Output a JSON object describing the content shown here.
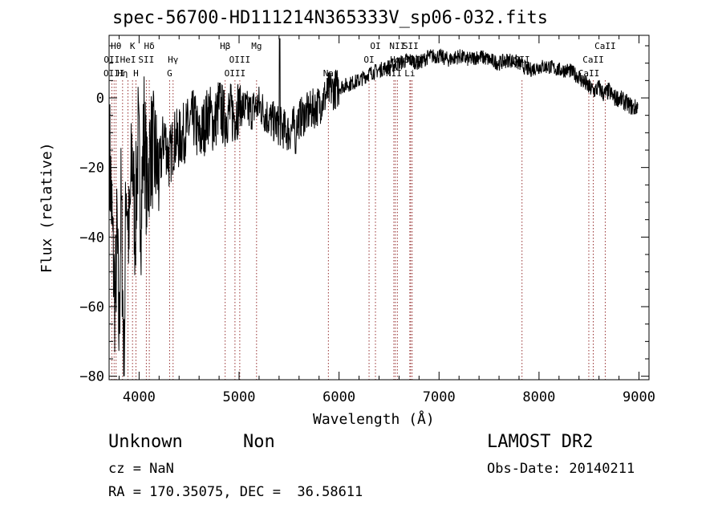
{
  "chart_data": {
    "type": "line",
    "title": "spec-56700-HD111214N365333V_sp06-032.fits",
    "xlabel": "Wavelength (Å)",
    "ylabel": "Flux (relative)",
    "xlim": [
      3700,
      9100
    ],
    "ylim": [
      -81,
      18
    ],
    "xticks": [
      4000,
      5000,
      6000,
      7000,
      8000,
      9000
    ],
    "yticks": [
      -80,
      -60,
      -40,
      -20,
      0
    ],
    "grid": false,
    "line_color": "#000000",
    "marker_color": "#8b1a1a",
    "series": [
      {
        "x": [
          3700,
          3740,
          3760,
          3780,
          3800,
          3820,
          3850,
          3870,
          3900,
          3930,
          3960,
          3990,
          4020,
          4050,
          4080,
          4110,
          4150,
          4200,
          4250,
          4300,
          4350,
          4400,
          4450,
          4500,
          4550,
          4600,
          4650,
          4700,
          4750,
          4800,
          4850,
          4900,
          4950,
          5000,
          5100,
          5200,
          5300,
          5400,
          5500,
          5600,
          5700,
          5800,
          5900,
          6000,
          6100,
          6200,
          6300,
          6400,
          6500,
          6600,
          6700,
          6800,
          6900,
          7000,
          7100,
          7200,
          7300,
          7400,
          7500,
          7600,
          7700,
          7800,
          7900,
          8000,
          8100,
          8200,
          8300,
          8400,
          8500,
          8550,
          8600,
          8650,
          8700,
          8750,
          8800,
          8850,
          8900,
          8950,
          9000
        ],
        "y": [
          -10,
          -45,
          -60,
          -38,
          -70,
          -28,
          -80,
          -22,
          -42,
          -15,
          -38,
          -12,
          -33,
          -8,
          -28,
          -14,
          -16,
          -22,
          -10,
          -18,
          -12,
          -12,
          -10,
          -8,
          -6,
          -12,
          -8,
          -4,
          -8,
          -2,
          -6,
          -4,
          -5,
          -2,
          -4,
          -2,
          -6,
          -8,
          -10,
          -6,
          -4,
          -2,
          2,
          3,
          4,
          5,
          7,
          8,
          9,
          10,
          11,
          10,
          12,
          12,
          11,
          12,
          11,
          12,
          11,
          10,
          11,
          10,
          8,
          9,
          9,
          8,
          8,
          6,
          3,
          2,
          3,
          1,
          2,
          0,
          0,
          -1,
          -2,
          -3,
          -2
        ]
      }
    ],
    "lines": [
      {
        "x": 3727,
        "label": "OII",
        "row": 2
      },
      {
        "x": 3750,
        "label": "OIII",
        "row": 3
      },
      {
        "x": 3770,
        "label": "Hθ",
        "row": 1
      },
      {
        "x": 3835,
        "label": "Hη",
        "row": 3
      },
      {
        "x": 3889,
        "label": "HeI",
        "row": 2
      },
      {
        "x": 3934,
        "label": "K",
        "row": 1
      },
      {
        "x": 3968,
        "label": "H",
        "row": 3
      },
      {
        "x": 4072,
        "label": "SII",
        "row": 2
      },
      {
        "x": 4102,
        "label": "Hδ",
        "row": 1
      },
      {
        "x": 4305,
        "label": "G",
        "row": 3
      },
      {
        "x": 4340,
        "label": "Hγ",
        "row": 2
      },
      {
        "x": 4861,
        "label": "Hβ",
        "row": 1
      },
      {
        "x": 4959,
        "label": "OIII",
        "row": 3
      },
      {
        "x": 5007,
        "label": "OIII",
        "row": 2
      },
      {
        "x": 5175,
        "label": "Mg",
        "row": 1
      },
      {
        "x": 5893,
        "label": "Na",
        "row": 3
      },
      {
        "x": 6300,
        "label": "OI",
        "row": 2
      },
      {
        "x": 6364,
        "label": "OI",
        "row": 1
      },
      {
        "x": 6548,
        "label": "NII",
        "row": 3
      },
      {
        "x": 6563,
        "label": "Hα",
        "row": 2
      },
      {
        "x": 6583,
        "label": "NII",
        "row": 1
      },
      {
        "x": 6708,
        "label": "Li",
        "row": 3
      },
      {
        "x": 6716,
        "label": "SII",
        "row": 1
      },
      {
        "x": 6731,
        "label": "SII",
        "row": 2
      },
      {
        "x": 7830,
        "label": "SII",
        "row": 2
      },
      {
        "x": 8498,
        "label": "CaII",
        "row": 3
      },
      {
        "x": 8542,
        "label": "CaII",
        "row": 2
      },
      {
        "x": 8662,
        "label": "CaII",
        "row": 1
      }
    ]
  },
  "info": {
    "class": "Unknown",
    "subclass": "Non",
    "survey": "LAMOST DR2",
    "cz": "cz = NaN",
    "obsdate": "Obs-Date: 20140211",
    "radec": "RA = 170.35075, DEC =  36.58611"
  }
}
